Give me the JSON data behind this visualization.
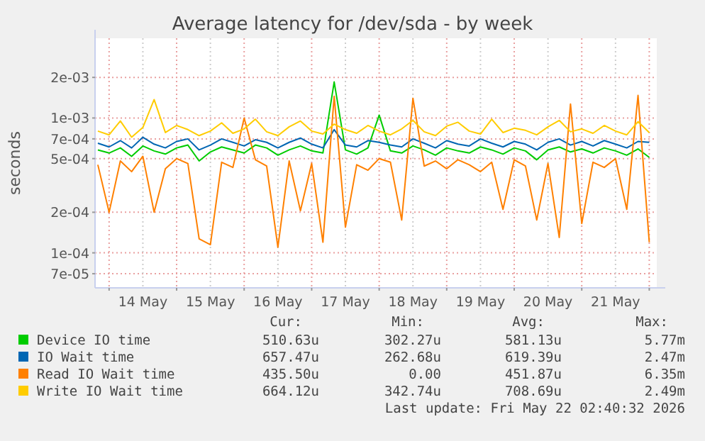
{
  "chart_data": {
    "type": "line",
    "title": "Average latency for /dev/sda - by week",
    "ylabel": "seconds",
    "log": "y",
    "grid": true,
    "legend": "bottom",
    "x": [
      "2026-05-13T20:00",
      "2026-05-14T00:00",
      "2026-05-14T04:00",
      "2026-05-14T08:00",
      "2026-05-14T12:00",
      "2026-05-14T16:00",
      "2026-05-14T20:00",
      "2026-05-15T00:00",
      "2026-05-15T04:00",
      "2026-05-15T08:00",
      "2026-05-15T12:00",
      "2026-05-15T16:00",
      "2026-05-15T20:00",
      "2026-05-16T00:00",
      "2026-05-16T04:00",
      "2026-05-16T08:00",
      "2026-05-16T12:00",
      "2026-05-16T16:00",
      "2026-05-16T20:00",
      "2026-05-17T00:00",
      "2026-05-17T04:00",
      "2026-05-17T08:00",
      "2026-05-17T12:00",
      "2026-05-17T16:00",
      "2026-05-17T20:00",
      "2026-05-18T00:00",
      "2026-05-18T04:00",
      "2026-05-18T08:00",
      "2026-05-18T12:00",
      "2026-05-18T16:00",
      "2026-05-18T20:00",
      "2026-05-19T00:00",
      "2026-05-19T04:00",
      "2026-05-19T08:00",
      "2026-05-19T12:00",
      "2026-05-19T16:00",
      "2026-05-19T20:00",
      "2026-05-20T00:00",
      "2026-05-20T04:00",
      "2026-05-20T08:00",
      "2026-05-20T12:00",
      "2026-05-20T16:00",
      "2026-05-20T20:00",
      "2026-05-21T00:00",
      "2026-05-21T04:00",
      "2026-05-21T08:00",
      "2026-05-21T12:00",
      "2026-05-21T16:00",
      "2026-05-21T20:00",
      "2026-05-22T00:00"
    ],
    "xlim": [
      "2026-05-13T19:00",
      "2026-05-22T02:40"
    ],
    "xticks": [
      {
        "value": "2026-05-14T00:00",
        "label": null
      },
      {
        "value": "2026-05-14T12:00",
        "label": "14 May"
      },
      {
        "value": "2026-05-15T00:00",
        "label": null
      },
      {
        "value": "2026-05-15T12:00",
        "label": "15 May"
      },
      {
        "value": "2026-05-16T00:00",
        "label": null
      },
      {
        "value": "2026-05-16T12:00",
        "label": "16 May"
      },
      {
        "value": "2026-05-17T00:00",
        "label": null
      },
      {
        "value": "2026-05-17T12:00",
        "label": "17 May"
      },
      {
        "value": "2026-05-18T00:00",
        "label": null
      },
      {
        "value": "2026-05-18T12:00",
        "label": "18 May"
      },
      {
        "value": "2026-05-19T00:00",
        "label": null
      },
      {
        "value": "2026-05-19T12:00",
        "label": "19 May"
      },
      {
        "value": "2026-05-20T00:00",
        "label": null
      },
      {
        "value": "2026-05-20T12:00",
        "label": "20 May"
      },
      {
        "value": "2026-05-21T00:00",
        "label": null
      },
      {
        "value": "2026-05-21T12:00",
        "label": "21 May"
      },
      {
        "value": "2026-05-22T00:00",
        "label": null
      }
    ],
    "ylim": [
      5.5e-05,
      0.0039
    ],
    "yticks": [
      {
        "value": 7e-05,
        "label": "7e-05"
      },
      {
        "value": 0.0001,
        "label": "1e-04"
      },
      {
        "value": 0.0002,
        "label": "2e-04"
      },
      {
        "value": 0.0005,
        "label": "5e-04"
      },
      {
        "value": 0.0007,
        "label": "7e-04"
      },
      {
        "value": 0.001,
        "label": "1e-03"
      },
      {
        "value": 0.002,
        "label": "2e-03"
      }
    ],
    "series": [
      {
        "name": "Device IO time",
        "color": "#00cc00",
        "values": [
          0.00058,
          0.00055,
          0.0006,
          0.00052,
          0.00062,
          0.00057,
          0.00054,
          0.0006,
          0.00063,
          0.00048,
          0.00056,
          0.00061,
          0.00058,
          0.00055,
          0.00063,
          0.0006,
          0.00053,
          0.00058,
          0.00062,
          0.00057,
          0.00055,
          0.00185,
          0.00058,
          0.00054,
          0.0006,
          0.00105,
          0.00057,
          0.00055,
          0.00062,
          0.00058,
          0.00053,
          0.0006,
          0.00057,
          0.00055,
          0.00061,
          0.00058,
          0.00054,
          0.0006,
          0.00057,
          0.00049,
          0.00058,
          0.00061,
          0.00056,
          0.00059,
          0.00055,
          0.0006,
          0.00057,
          0.00053,
          0.00059,
          0.00051
        ]
      },
      {
        "name": "IO Wait time",
        "color": "#0066b3",
        "values": [
          0.00065,
          0.00061,
          0.00068,
          0.0006,
          0.00072,
          0.00064,
          0.0006,
          0.00067,
          0.0007,
          0.00058,
          0.00063,
          0.0007,
          0.00066,
          0.00062,
          0.00069,
          0.00066,
          0.0006,
          0.00066,
          0.00071,
          0.00064,
          0.0006,
          0.00082,
          0.00063,
          0.00061,
          0.00068,
          0.00066,
          0.00063,
          0.00061,
          0.0007,
          0.00065,
          0.0006,
          0.00068,
          0.00064,
          0.00062,
          0.0007,
          0.00065,
          0.00061,
          0.00067,
          0.00064,
          0.00058,
          0.00066,
          0.0007,
          0.00063,
          0.00067,
          0.00062,
          0.00068,
          0.00064,
          0.0006,
          0.00067,
          0.00066
        ]
      },
      {
        "name": "Read IO Wait time",
        "color": "#ff8000",
        "values": [
          0.00045,
          0.0002,
          0.00048,
          0.0004,
          0.00052,
          0.0002,
          0.00042,
          0.0005,
          0.00046,
          0.000127,
          0.000115,
          0.00047,
          0.00043,
          0.001,
          0.00049,
          0.00044,
          0.00011,
          0.00048,
          0.000205,
          0.00046,
          0.00012,
          0.00145,
          0.000155,
          0.00045,
          0.00041,
          0.0005,
          0.00047,
          0.000175,
          0.0014,
          0.00044,
          0.00048,
          0.00042,
          0.00049,
          0.00045,
          0.0004,
          0.00047,
          0.00021,
          0.00049,
          0.00044,
          0.000175,
          0.00046,
          0.00013,
          0.00127,
          0.000165,
          0.00047,
          0.00043,
          0.0005,
          0.00021,
          0.00147,
          0.00012
        ]
      },
      {
        "name": "Write IO Wait time",
        "color": "#ffcc00",
        "values": [
          0.0008,
          0.00075,
          0.00095,
          0.00072,
          0.00085,
          0.00137,
          0.00078,
          0.00088,
          0.00082,
          0.00074,
          0.0008,
          0.00092,
          0.00077,
          0.00083,
          0.00098,
          0.00079,
          0.00074,
          0.00086,
          0.00095,
          0.0008,
          0.00076,
          0.0009,
          0.00082,
          0.00077,
          0.00088,
          0.0008,
          0.00075,
          0.00083,
          0.00096,
          0.00079,
          0.00074,
          0.00087,
          0.00093,
          0.0008,
          0.00076,
          0.00098,
          0.00078,
          0.00084,
          0.00081,
          0.00075,
          0.00086,
          0.00096,
          0.00079,
          0.00083,
          0.00077,
          0.00088,
          0.0008,
          0.00075,
          0.00094,
          0.00078
        ]
      }
    ],
    "annotations": [
      "Cur:",
      "Min:",
      "Avg:",
      "Max:",
      "510.63u",
      "302.27u",
      "581.13u",
      "5.77m",
      "657.47u",
      "262.68u",
      "619.39u",
      "2.47m",
      "435.50u",
      "0.00",
      "451.87u",
      "6.35m",
      "664.12u",
      "342.74u",
      "708.69u",
      "2.49m",
      "Last update: Fri May 22 02:40:32 2026"
    ]
  }
}
